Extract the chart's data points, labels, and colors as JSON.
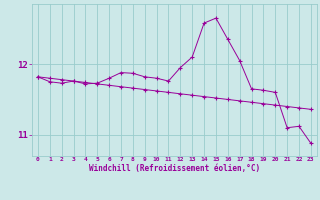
{
  "xlabel": "Windchill (Refroidissement éolien,°C)",
  "hours": [
    0,
    1,
    2,
    3,
    4,
    5,
    6,
    7,
    8,
    9,
    10,
    11,
    12,
    13,
    14,
    15,
    16,
    17,
    18,
    19,
    20,
    21,
    22,
    23
  ],
  "curve1": [
    11.82,
    11.8,
    11.78,
    11.76,
    11.74,
    11.72,
    11.7,
    11.68,
    11.66,
    11.64,
    11.62,
    11.6,
    11.58,
    11.56,
    11.54,
    11.52,
    11.5,
    11.48,
    11.46,
    11.44,
    11.42,
    11.4,
    11.38,
    11.36
  ],
  "curve2": [
    11.82,
    11.75,
    11.73,
    11.76,
    11.72,
    11.73,
    11.8,
    11.88,
    11.87,
    11.82,
    11.8,
    11.76,
    11.95,
    12.1,
    12.58,
    12.65,
    12.35,
    12.05,
    11.65,
    11.63,
    11.6,
    11.1,
    11.12,
    10.88
  ],
  "line_color": "#990099",
  "bg_color": "#cce8e8",
  "grid_color": "#99cccc",
  "ylim": [
    10.7,
    12.85
  ],
  "yticks": [
    11,
    12
  ],
  "marker": "+"
}
